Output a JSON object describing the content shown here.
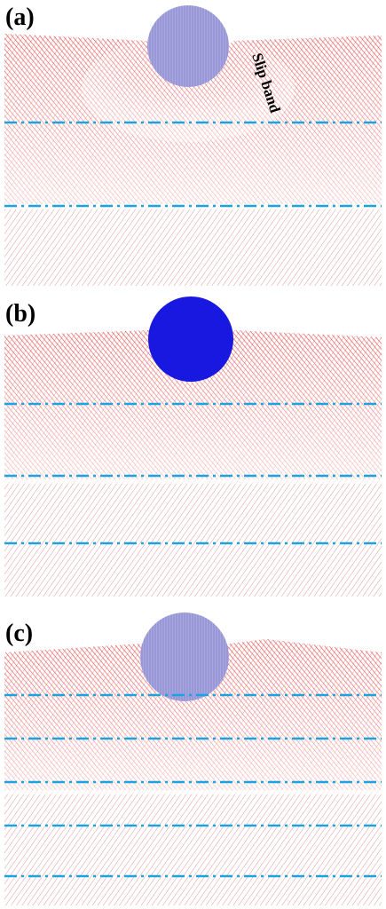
{
  "panels": [
    {
      "label": "(a)",
      "annotation": "Slip band"
    },
    {
      "label": "(b)"
    },
    {
      "label": "(c)"
    }
  ]
}
